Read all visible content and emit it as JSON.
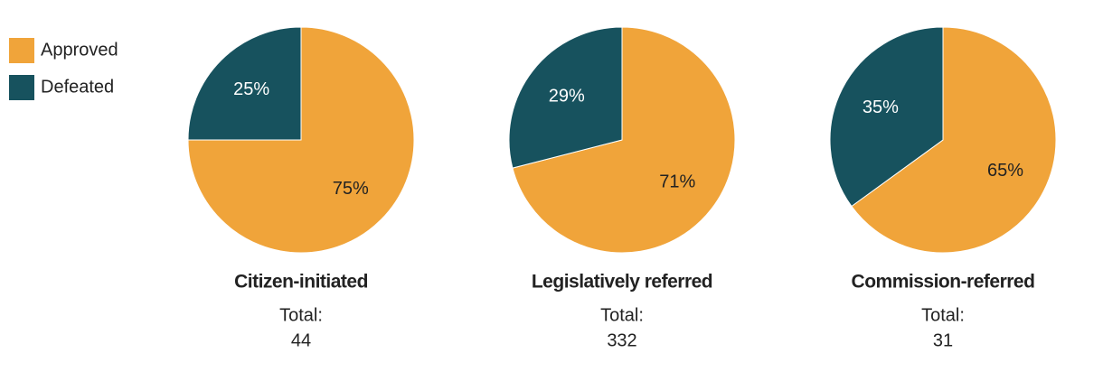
{
  "chart_data": [
    {
      "type": "pie",
      "title": "Citizen-initiated",
      "categories": [
        "Approved",
        "Defeated"
      ],
      "values": [
        75,
        25
      ],
      "colors": [
        "#f0a43a",
        "#17525e"
      ],
      "total_label": "Total:",
      "total": 44
    },
    {
      "type": "pie",
      "title": "Legislatively referred",
      "categories": [
        "Approved",
        "Defeated"
      ],
      "values": [
        71,
        29
      ],
      "colors": [
        "#f0a43a",
        "#17525e"
      ],
      "total_label": "Total:",
      "total": 332
    },
    {
      "type": "pie",
      "title": "Commission-referred",
      "categories": [
        "Approved",
        "Defeated"
      ],
      "values": [
        65,
        35
      ],
      "colors": [
        "#f0a43a",
        "#17525e"
      ],
      "total_label": "Total:",
      "total": 31
    }
  ]
}
